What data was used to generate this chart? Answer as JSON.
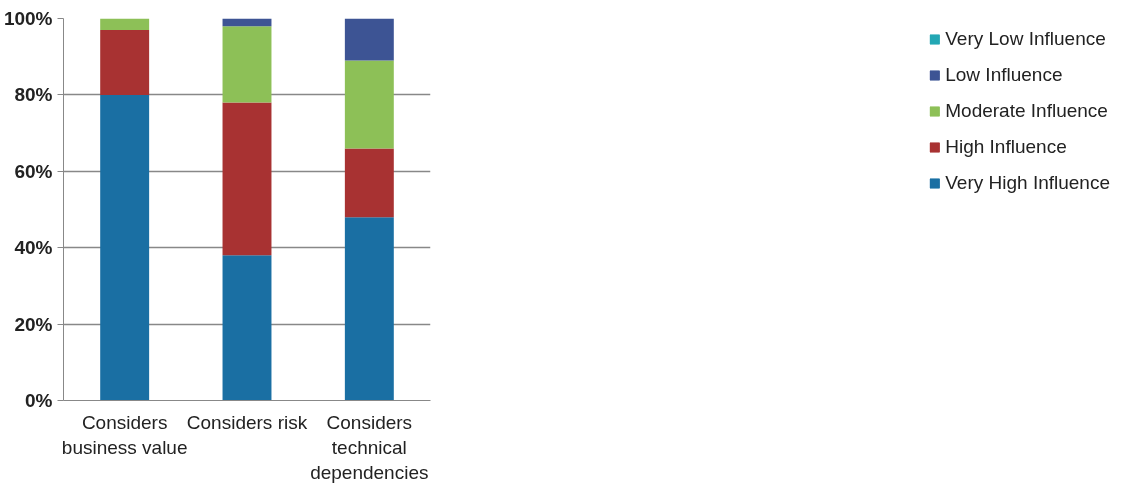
{
  "chart_data": {
    "type": "bar",
    "stacked": true,
    "categories": [
      "Considers business value",
      "Considers risk",
      "Considers technical dependencies"
    ],
    "series": [
      {
        "name": "Very High Influence",
        "color": "#1a6fa3",
        "values": [
          80,
          38,
          48
        ]
      },
      {
        "name": "High Influence",
        "color": "#a83232",
        "values": [
          17,
          40,
          18
        ]
      },
      {
        "name": "Moderate Influence",
        "color": "#8dc057",
        "values": [
          3,
          20,
          23
        ]
      },
      {
        "name": "Low Influence",
        "color": "#3d5494",
        "values": [
          0,
          2,
          11
        ]
      },
      {
        "name": "Very Low Influence",
        "color": "#23a7b4",
        "values": [
          0,
          0,
          0
        ]
      }
    ],
    "ylim": [
      0,
      100
    ],
    "yticks": [
      {
        "value": 0,
        "label": "0%"
      },
      {
        "value": 20,
        "label": "20%"
      },
      {
        "value": 40,
        "label": "40%"
      },
      {
        "value": 60,
        "label": "60%"
      },
      {
        "value": 80,
        "label": "80%"
      },
      {
        "value": 100,
        "label": "100%"
      }
    ],
    "grid": "y",
    "legend": "right"
  }
}
